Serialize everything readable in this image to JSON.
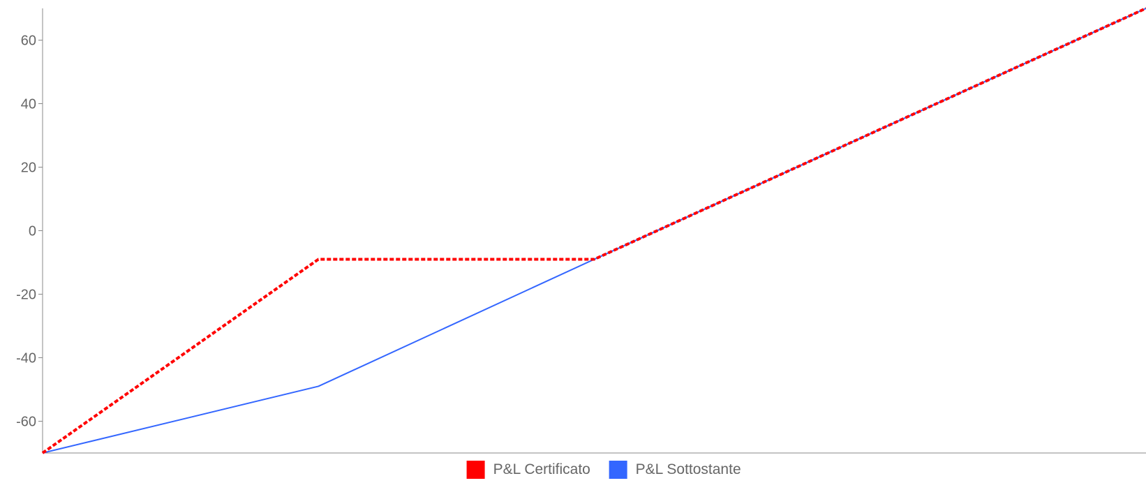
{
  "chart_data": {
    "type": "line",
    "title": "",
    "xlabel": "",
    "ylabel": "",
    "x": [
      0,
      25,
      50,
      100
    ],
    "ylim": [
      -70,
      70
    ],
    "yticks": [
      60,
      40,
      20,
      0,
      -20,
      -40,
      -60
    ],
    "y_tick_labels": [
      "60",
      "40",
      "20",
      "0",
      "-20",
      "-40",
      "-60"
    ],
    "grid": false,
    "legend_position": "bottom",
    "series": [
      {
        "name": "P&L Certificato",
        "color": "#ff0000",
        "style": "dashed",
        "values": [
          -70,
          -9,
          -9,
          70
        ]
      },
      {
        "name": "P&L Sottostante",
        "color": "#3366ff",
        "style": "solid",
        "values": [
          -70,
          -49,
          -9,
          70
        ]
      }
    ]
  }
}
